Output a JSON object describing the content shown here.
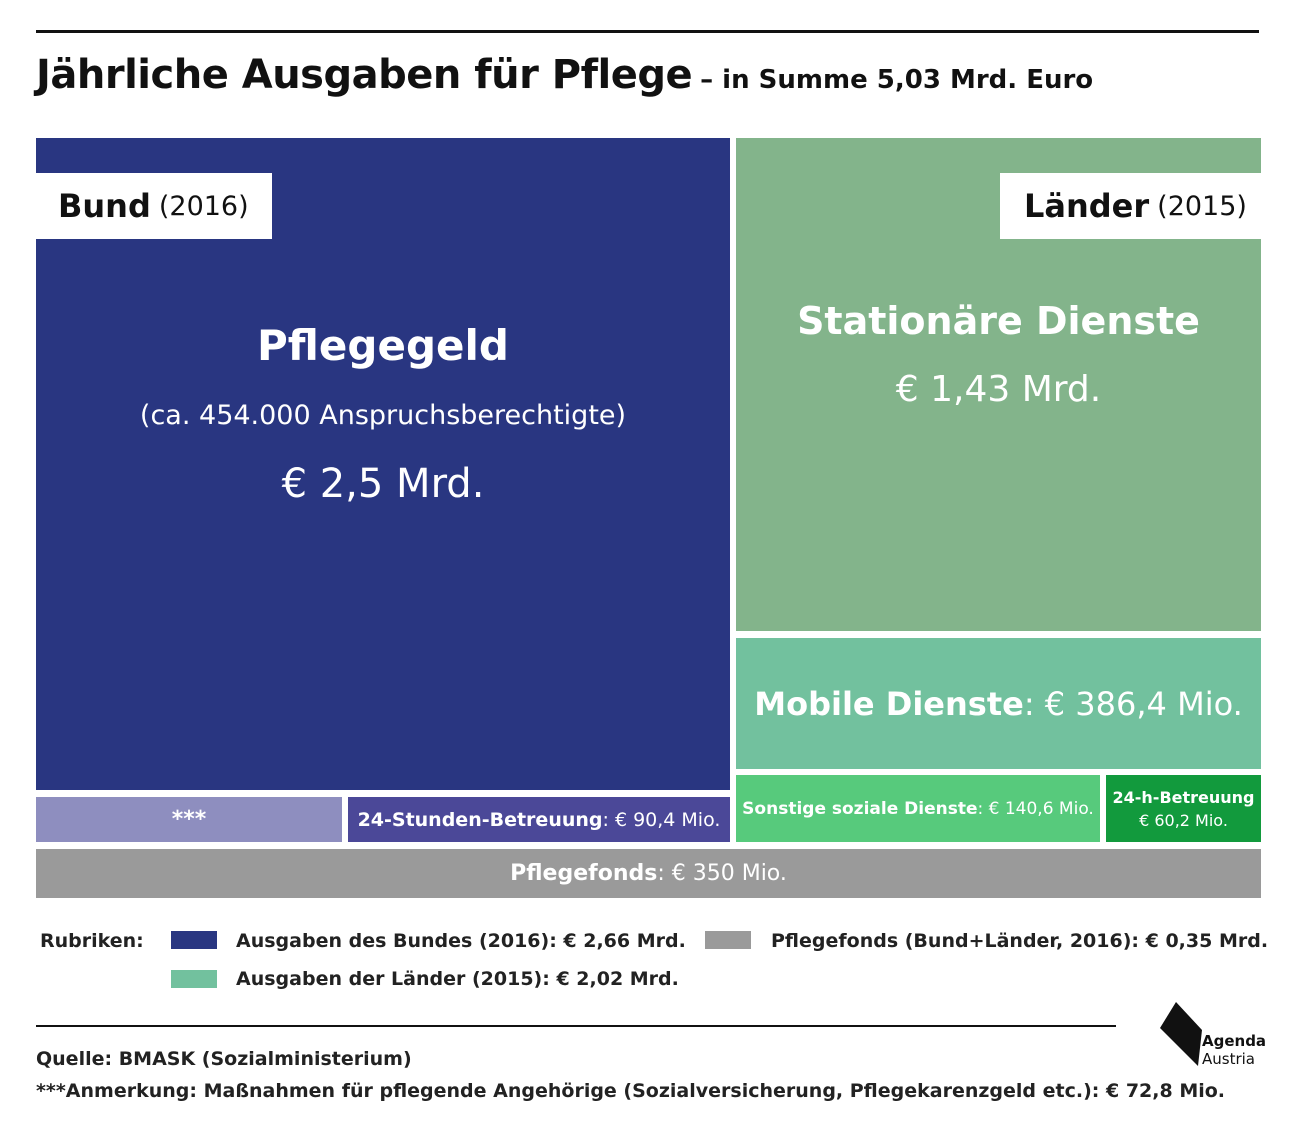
{
  "title": "Jährliche Ausgaben für Pflege",
  "subtitle": "– in Summe 5,03 Mrd. Euro",
  "chart_data": {
    "type": "treemap",
    "groups": [
      {
        "name": "Bund",
        "year": "(2016)"
      },
      {
        "name": "Länder",
        "year": "(2015)"
      }
    ],
    "items": [
      {
        "group": "Bund",
        "label": "Pflegegeld",
        "note": "(ca. 454.000 Anspruchsberechtigte)",
        "value_text": "€ 2,5 Mrd.",
        "value_mio": 2500,
        "color": "#293681"
      },
      {
        "group": "Bund",
        "label": "***",
        "value_text": "",
        "value_mio": 72.8,
        "color": "#8e8ebf"
      },
      {
        "group": "Bund",
        "label": "24-Stunden-Betreuung",
        "value_text": ": € 90,4 Mio.",
        "value_mio": 90.4,
        "color": "#4b4898"
      },
      {
        "group": "Länder",
        "label": "Stationäre Dienste",
        "value_text": "€ 1,43 Mrd.",
        "value_mio": 1430,
        "color": "#83b48b"
      },
      {
        "group": "Länder",
        "label": "Mobile Dienste",
        "value_text": ": € 386,4 Mio.",
        "value_mio": 386.4,
        "color": "#72c19e"
      },
      {
        "group": "Länder",
        "label": "Sonstige soziale Dienste",
        "value_text": ": € 140,6 Mio.",
        "value_mio": 140.6,
        "color": "#57ca7c"
      },
      {
        "group": "Länder",
        "label": "24-h-Betreuung",
        "value_text": "€ 60,2 Mio.",
        "value_mio": 60.2,
        "color": "#129a3d"
      },
      {
        "group": "Pflegefonds",
        "label": "Pflegefonds",
        "value_text": ": € 350 Mio.",
        "value_mio": 350,
        "color": "#9a9a9a"
      }
    ]
  },
  "legend": {
    "heading": "Rubriken:",
    "entries": [
      {
        "label": "Ausgaben des Bundes (2016): € 2,66 Mrd.",
        "color": "#293681"
      },
      {
        "label": "Pflegefonds (Bund+Länder, 2016): € 0,35 Mrd.",
        "color": "#9a9a9a"
      },
      {
        "label": "Ausgaben der Länder (2015): € 2,02 Mrd.",
        "color": "#72c19e"
      }
    ]
  },
  "source": "Quelle: BMASK (Sozialministerium)",
  "note": "***Anmerkung: Maßnahmen für pflegende Angehörige (Sozialversicherung, Pflegekarenzgeld etc.): € 72,8 Mio.",
  "logo": {
    "line1": "Agenda",
    "line2": "Austria"
  }
}
